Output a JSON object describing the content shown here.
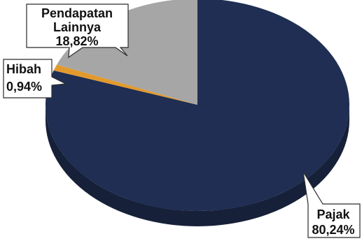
{
  "chart_data": {
    "type": "pie",
    "title": "",
    "slices": [
      {
        "name": "Pajak",
        "value": 80.24,
        "label_lines": [
          "Pajak",
          "80,24%"
        ],
        "color": "#1f2e52"
      },
      {
        "name": "Hibah",
        "value": 0.94,
        "label_lines": [
          "Hibah",
          "0,94%"
        ],
        "color": "#e39a2d"
      },
      {
        "name": "Pendapatan Lainnya",
        "value": 18.82,
        "label_lines": [
          "Pendapatan",
          "Lainnya",
          "18,82%"
        ],
        "color": "#a6a6a6"
      }
    ],
    "style": "3d-pie",
    "legend": "none",
    "labels": "callout"
  }
}
